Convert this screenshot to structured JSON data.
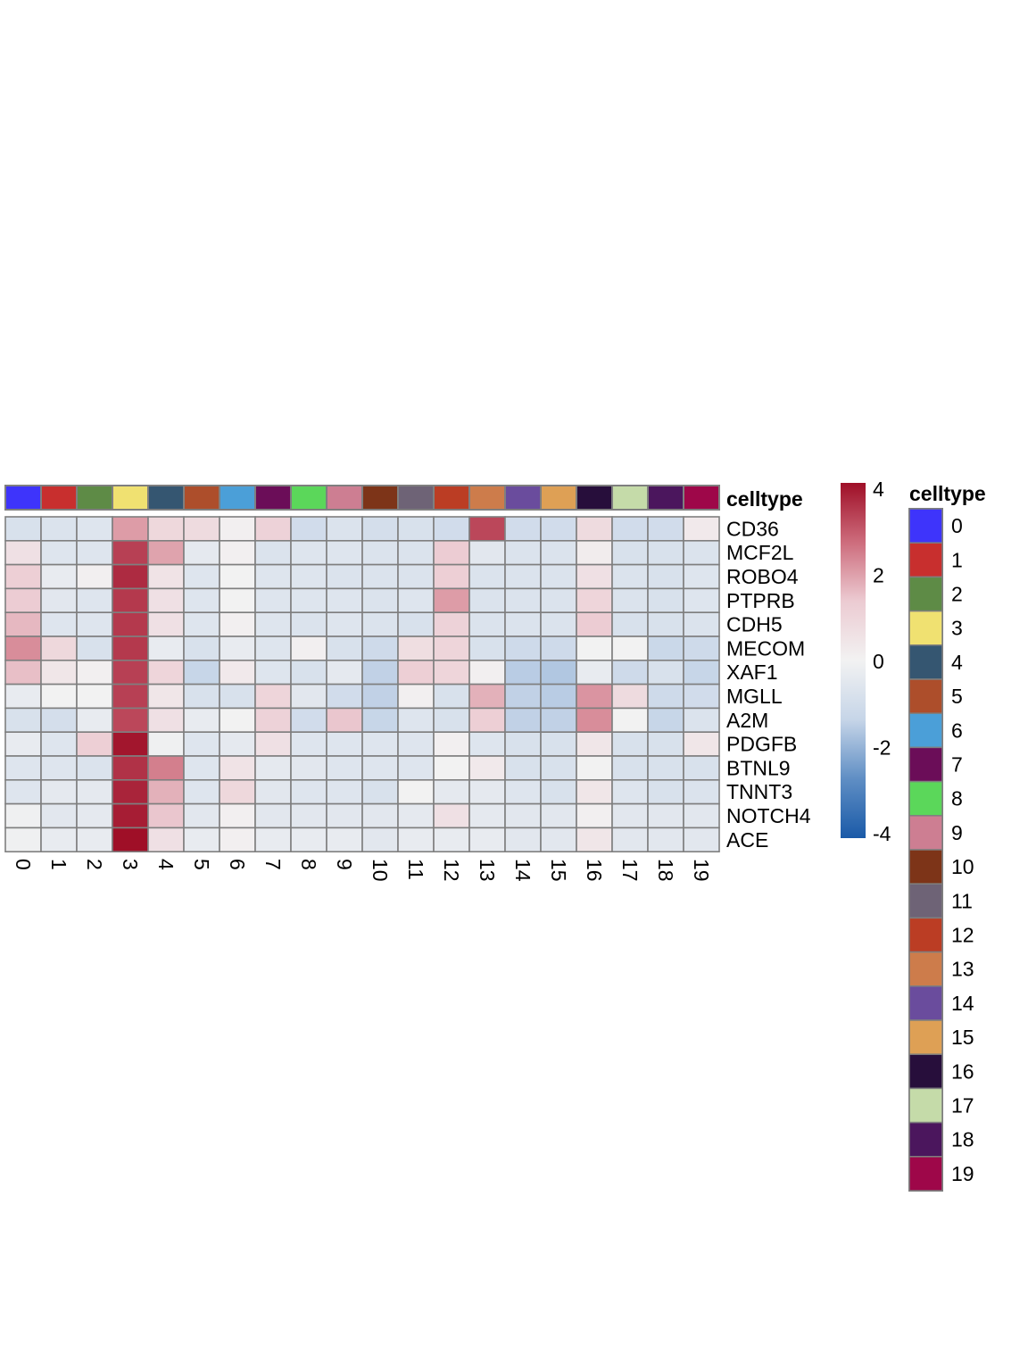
{
  "chart_data": {
    "type": "heatmap",
    "title": "",
    "columns": [
      "0",
      "1",
      "2",
      "3",
      "4",
      "5",
      "6",
      "7",
      "8",
      "9",
      "10",
      "11",
      "12",
      "13",
      "14",
      "15",
      "16",
      "17",
      "18",
      "19"
    ],
    "rows": [
      "CD36",
      "MCF2L",
      "ROBO4",
      "PTPRB",
      "CDH5",
      "MECOM",
      "XAF1",
      "MGLL",
      "A2M",
      "PDGFB",
      "BTNL9",
      "TNNT3",
      "NOTCH4",
      "ACE"
    ],
    "values": [
      [
        -0.8,
        -0.7,
        -0.6,
        2.0,
        0.9,
        0.8,
        0.1,
        1.1,
        -1.0,
        -0.7,
        -0.9,
        -0.8,
        -1.0,
        3.2,
        -1.0,
        -1.0,
        0.8,
        -1.0,
        -1.0,
        0.3
      ],
      [
        0.6,
        -0.6,
        -0.6,
        3.3,
        1.9,
        -0.4,
        0.1,
        -0.7,
        -0.6,
        -0.6,
        -0.7,
        -0.7,
        1.3,
        -0.5,
        -0.7,
        -0.7,
        0.2,
        -0.8,
        -0.8,
        -0.7
      ],
      [
        1.2,
        -0.3,
        0.1,
        3.6,
        0.5,
        -0.6,
        0.0,
        -0.6,
        -0.6,
        -0.7,
        -0.7,
        -0.7,
        1.2,
        -0.7,
        -0.7,
        -0.7,
        0.6,
        -0.7,
        -0.8,
        -0.6
      ],
      [
        1.3,
        -0.5,
        -0.6,
        3.4,
        0.6,
        -0.6,
        0.0,
        -0.6,
        -0.6,
        -0.6,
        -0.7,
        -0.6,
        2.0,
        -0.7,
        -0.7,
        -0.7,
        1.0,
        -0.7,
        -0.8,
        -0.6
      ],
      [
        1.6,
        -0.6,
        -0.6,
        3.4,
        0.6,
        -0.6,
        0.1,
        -0.6,
        -0.7,
        -0.6,
        -0.7,
        -0.8,
        1.1,
        -0.7,
        -0.7,
        -0.7,
        1.3,
        -0.8,
        -0.8,
        -0.7
      ],
      [
        2.2,
        0.9,
        -0.8,
        3.4,
        -0.3,
        -0.8,
        -0.3,
        -0.6,
        0.1,
        -0.8,
        -1.1,
        0.7,
        1.0,
        -0.8,
        -1.1,
        -1.1,
        0.0,
        0.0,
        -1.2,
        -1.1
      ],
      [
        1.5,
        0.4,
        0.1,
        3.3,
        1.0,
        -1.3,
        0.3,
        -0.6,
        -0.8,
        -0.4,
        -1.4,
        1.2,
        1.0,
        0.1,
        -1.5,
        -1.6,
        -0.3,
        -1.1,
        -0.8,
        -1.3
      ],
      [
        -0.3,
        0.0,
        0.0,
        3.3,
        0.4,
        -0.8,
        -0.8,
        1.0,
        -0.5,
        -1.0,
        -1.4,
        0.1,
        -0.8,
        1.7,
        -1.4,
        -1.5,
        2.1,
        0.8,
        -1.1,
        -1.0
      ],
      [
        -0.8,
        -0.9,
        -0.3,
        3.2,
        0.6,
        -0.3,
        0.0,
        1.1,
        -1.0,
        1.4,
        -1.3,
        -0.6,
        -0.8,
        1.2,
        -1.4,
        -1.4,
        2.2,
        0.0,
        -1.3,
        -0.7
      ],
      [
        -0.3,
        -0.6,
        1.2,
        3.9,
        -0.1,
        -0.6,
        -0.4,
        0.6,
        -0.6,
        -0.6,
        -0.6,
        -0.6,
        0.1,
        -0.6,
        -0.8,
        -0.8,
        0.4,
        -0.8,
        -0.8,
        0.4
      ],
      [
        -0.6,
        -0.6,
        -0.7,
        3.5,
        2.4,
        -0.6,
        0.5,
        -0.4,
        -0.5,
        -0.6,
        -0.6,
        -0.6,
        0.0,
        0.3,
        -0.8,
        -0.8,
        0.0,
        -0.8,
        -0.8,
        -0.8
      ],
      [
        -0.6,
        -0.4,
        -0.4,
        3.7,
        1.7,
        -0.6,
        0.9,
        -0.5,
        -0.6,
        -0.6,
        -0.8,
        0.0,
        -0.4,
        -0.4,
        -0.6,
        -0.8,
        0.4,
        -0.6,
        -0.8,
        -0.7
      ],
      [
        -0.1,
        -0.5,
        -0.4,
        3.8,
        1.4,
        -0.5,
        0.1,
        -0.5,
        -0.5,
        -0.5,
        -0.5,
        -0.4,
        0.6,
        -0.4,
        -0.5,
        -0.5,
        0.1,
        -0.5,
        -0.5,
        -0.5
      ],
      [
        -0.1,
        -0.3,
        -0.3,
        4.0,
        0.6,
        -0.3,
        0.1,
        -0.3,
        -0.3,
        -0.3,
        -0.5,
        -0.3,
        -0.3,
        -0.3,
        -0.5,
        -0.5,
        0.4,
        -0.5,
        -0.5,
        -0.5
      ]
    ],
    "annotation": {
      "name": "celltype",
      "categories": [
        "0",
        "1",
        "2",
        "3",
        "4",
        "5",
        "6",
        "7",
        "8",
        "9",
        "10",
        "11",
        "12",
        "13",
        "14",
        "15",
        "16",
        "17",
        "18",
        "19"
      ],
      "colors": [
        "#3e34fb",
        "#c82f2e",
        "#5e8b46",
        "#f0e171",
        "#355671",
        "#ad4e2b",
        "#4b9fd8",
        "#6b0d58",
        "#5bd75a",
        "#cd7e92",
        "#7d3418",
        "#6e6376",
        "#bb3d24",
        "#cd7c4b",
        "#6a4c9d",
        "#dea055",
        "#270e3b",
        "#c5dba9",
        "#4b165d",
        "#9e0749"
      ]
    },
    "colorbar": {
      "min": -4,
      "max": 4,
      "ticks": [
        "4",
        "2",
        "0",
        "-2",
        "-4"
      ],
      "colors": [
        "#1a5aa8",
        "#5f8ec4",
        "#c6d5e8",
        "#f2f2f2",
        "#eccbd2",
        "#cd6c7c",
        "#9f0f27"
      ]
    }
  }
}
